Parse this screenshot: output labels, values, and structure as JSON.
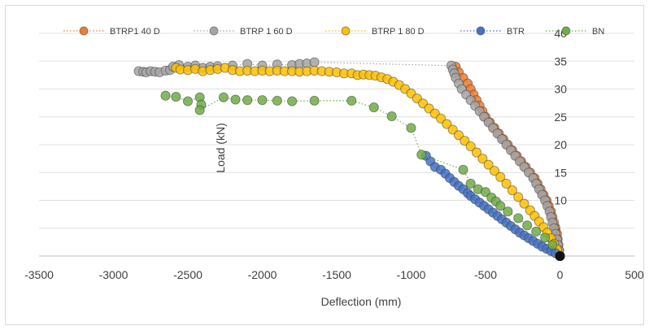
{
  "chart_data": {
    "type": "scatter",
    "title": "",
    "xlabel": "Deflection (mm)",
    "ylabel": "Load (kN)",
    "xlim": [
      -3500,
      500
    ],
    "ylim": [
      0,
      40
    ],
    "x_ticks": [
      "-3500",
      "-3000",
      "-2500",
      "-2000",
      "-1500",
      "-1000",
      "-500",
      "0",
      "500"
    ],
    "y_ticks": [
      "5",
      "10",
      "15",
      "20",
      "25",
      "30",
      "35",
      "40"
    ],
    "grid": "horizontal",
    "legend_position": "top",
    "series": [
      {
        "name": "BTRP1 40 D",
        "color": "#ed7d31",
        "points": [
          [
            -700,
            34
          ],
          [
            -680,
            33
          ],
          [
            -650,
            32
          ],
          [
            -620,
            31
          ],
          [
            -600,
            30
          ],
          [
            -580,
            29
          ],
          [
            -560,
            28
          ],
          [
            -540,
            27
          ],
          [
            -520,
            26
          ],
          [
            -500,
            25
          ],
          [
            -470,
            24
          ],
          [
            -440,
            23
          ],
          [
            -410,
            22
          ],
          [
            -380,
            21
          ],
          [
            -350,
            20
          ],
          [
            -320,
            19
          ],
          [
            -290,
            18
          ],
          [
            -260,
            17
          ],
          [
            -230,
            16
          ],
          [
            -200,
            15
          ],
          [
            -170,
            14
          ],
          [
            -150,
            13
          ],
          [
            -130,
            12
          ],
          [
            -110,
            11
          ],
          [
            -90,
            10
          ],
          [
            -75,
            9
          ],
          [
            -60,
            8
          ],
          [
            -50,
            7
          ],
          [
            -40,
            6
          ],
          [
            -30,
            5
          ],
          [
            -20,
            4
          ],
          [
            -15,
            3
          ],
          [
            -10,
            2
          ],
          [
            -5,
            1
          ],
          [
            0,
            0
          ]
        ]
      },
      {
        "name": "BTRP 1 60 D",
        "color": "#a5a5a5",
        "points": [
          [
            -2830,
            33.2
          ],
          [
            -2800,
            33.1
          ],
          [
            -2780,
            33
          ],
          [
            -2750,
            33.2
          ],
          [
            -2720,
            33.1
          ],
          [
            -2690,
            33
          ],
          [
            -2650,
            33.3
          ],
          [
            -2620,
            33.4
          ],
          [
            -2600,
            34
          ],
          [
            -2560,
            34.3
          ],
          [
            -2500,
            34
          ],
          [
            -2450,
            34.2
          ],
          [
            -2400,
            33.8
          ],
          [
            -2350,
            34
          ],
          [
            -2300,
            34.1
          ],
          [
            -2200,
            34.2
          ],
          [
            -2100,
            34.5
          ],
          [
            -2000,
            34.2
          ],
          [
            -1900,
            34.4
          ],
          [
            -1800,
            34.3
          ],
          [
            -1750,
            34.5
          ],
          [
            -1700,
            34.6
          ],
          [
            -1650,
            34.8
          ],
          [
            -730,
            34.2
          ],
          [
            -720,
            33.5
          ],
          [
            -710,
            32.8
          ],
          [
            -700,
            32
          ],
          [
            -680,
            31
          ],
          [
            -660,
            30
          ],
          [
            -630,
            29
          ],
          [
            -600,
            28
          ],
          [
            -570,
            27
          ],
          [
            -540,
            26
          ],
          [
            -510,
            25
          ],
          [
            -480,
            24
          ],
          [
            -450,
            23
          ],
          [
            -420,
            22
          ],
          [
            -390,
            21
          ],
          [
            -360,
            20
          ],
          [
            -330,
            19
          ],
          [
            -300,
            18
          ],
          [
            -270,
            17
          ],
          [
            -240,
            16
          ],
          [
            -210,
            15
          ],
          [
            -180,
            14
          ],
          [
            -160,
            13
          ],
          [
            -140,
            12
          ],
          [
            -120,
            11
          ],
          [
            -100,
            10
          ],
          [
            -85,
            9
          ],
          [
            -70,
            8
          ],
          [
            -60,
            7
          ],
          [
            -50,
            6
          ],
          [
            -40,
            5
          ],
          [
            -30,
            4
          ],
          [
            -20,
            3
          ],
          [
            -12,
            2
          ],
          [
            -6,
            1
          ],
          [
            0,
            0
          ]
        ]
      },
      {
        "name": "BTRP 1 80 D",
        "color": "#ffc000",
        "points": [
          [
            -2580,
            33.8
          ],
          [
            -2550,
            33.5
          ],
          [
            -2500,
            33.4
          ],
          [
            -2450,
            33.6
          ],
          [
            -2400,
            33.2
          ],
          [
            -2350,
            33.4
          ],
          [
            -2300,
            33.6
          ],
          [
            -2250,
            33.8
          ],
          [
            -2200,
            33.4
          ],
          [
            -2150,
            33.2
          ],
          [
            -2100,
            33.3
          ],
          [
            -2050,
            33.2
          ],
          [
            -2000,
            33.3
          ],
          [
            -1950,
            33.2
          ],
          [
            -1900,
            33.3
          ],
          [
            -1850,
            33.2
          ],
          [
            -1800,
            33.2
          ],
          [
            -1750,
            33.1
          ],
          [
            -1700,
            33.2
          ],
          [
            -1650,
            33.3
          ],
          [
            -1600,
            33.2
          ],
          [
            -1550,
            33.1
          ],
          [
            -1500,
            33
          ],
          [
            -1450,
            32.8
          ],
          [
            -1400,
            32.8
          ],
          [
            -1360,
            32.5
          ],
          [
            -1320,
            32.6
          ],
          [
            -1280,
            32.5
          ],
          [
            -1240,
            32.4
          ],
          [
            -1200,
            32.1
          ],
          [
            -1160,
            31.8
          ],
          [
            -1120,
            31.3
          ],
          [
            -1080,
            30.7
          ],
          [
            -1040,
            30
          ],
          [
            -1000,
            29.2
          ],
          [
            -960,
            28.3
          ],
          [
            -920,
            27.4
          ],
          [
            -880,
            26.5
          ],
          [
            -840,
            25.6
          ],
          [
            -800,
            24.7
          ],
          [
            -760,
            23.7
          ],
          [
            -720,
            22.7
          ],
          [
            -680,
            21.7
          ],
          [
            -640,
            20.7
          ],
          [
            -600,
            19.7
          ],
          [
            -560,
            18.6
          ],
          [
            -520,
            17.5
          ],
          [
            -480,
            16.4
          ],
          [
            -440,
            15.3
          ],
          [
            -400,
            14.2
          ],
          [
            -360,
            13
          ],
          [
            -320,
            11.8
          ],
          [
            -280,
            10.6
          ],
          [
            -240,
            9.4
          ],
          [
            -200,
            8.2
          ],
          [
            -170,
            7.2
          ],
          [
            -140,
            6.2
          ],
          [
            -110,
            5.2
          ],
          [
            -85,
            4.2
          ],
          [
            -60,
            3.2
          ],
          [
            -40,
            2.2
          ],
          [
            -20,
            1.2
          ],
          [
            0,
            0
          ]
        ]
      },
      {
        "name": "BTR",
        "color": "#4472c4",
        "points": [
          [
            -900,
            18
          ],
          [
            -870,
            17
          ],
          [
            -840,
            16
          ],
          [
            -800,
            15.5
          ],
          [
            -770,
            14.8
          ],
          [
            -740,
            14
          ],
          [
            -710,
            13.3
          ],
          [
            -680,
            12.6
          ],
          [
            -650,
            12
          ],
          [
            -620,
            11.3
          ],
          [
            -600,
            10.8
          ],
          [
            -570,
            10.2
          ],
          [
            -540,
            9.6
          ],
          [
            -510,
            9
          ],
          [
            -480,
            8.4
          ],
          [
            -450,
            7.8
          ],
          [
            -420,
            7.2
          ],
          [
            -390,
            6.6
          ],
          [
            -360,
            6
          ],
          [
            -330,
            5.4
          ],
          [
            -300,
            4.8
          ],
          [
            -270,
            4.2
          ],
          [
            -240,
            3.7
          ],
          [
            -210,
            3.2
          ],
          [
            -180,
            2.7
          ],
          [
            -150,
            2.2
          ],
          [
            -120,
            1.7
          ],
          [
            -90,
            1.3
          ],
          [
            -60,
            0.9
          ],
          [
            -30,
            0.5
          ],
          [
            0,
            0
          ]
        ]
      },
      {
        "name": "BN",
        "color": "#70ad47",
        "points": [
          [
            -2650,
            28.8
          ],
          [
            -2580,
            28.6
          ],
          [
            -2500,
            27.8
          ],
          [
            -2420,
            28.5
          ],
          [
            -2410,
            27.2
          ],
          [
            -2420,
            26.2
          ],
          [
            -2260,
            28.5
          ],
          [
            -2180,
            28.1
          ],
          [
            -2100,
            28
          ],
          [
            -2000,
            28
          ],
          [
            -1900,
            27.9
          ],
          [
            -1800,
            27.8
          ],
          [
            -1650,
            27.9
          ],
          [
            -1400,
            27.9
          ],
          [
            -1250,
            26.7
          ],
          [
            -1130,
            25.1
          ],
          [
            -1000,
            23
          ],
          [
            -930,
            18.2
          ],
          [
            -650,
            15.5
          ],
          [
            -600,
            13
          ],
          [
            -550,
            12
          ],
          [
            -500,
            11.5
          ],
          [
            -460,
            10.5
          ],
          [
            -430,
            9.8
          ],
          [
            -400,
            9
          ],
          [
            -350,
            8
          ],
          [
            -280,
            6.8
          ],
          [
            -220,
            5.5
          ],
          [
            -160,
            4.4
          ],
          [
            -100,
            3.3
          ],
          [
            -50,
            2
          ],
          [
            0,
            0
          ]
        ]
      }
    ]
  }
}
